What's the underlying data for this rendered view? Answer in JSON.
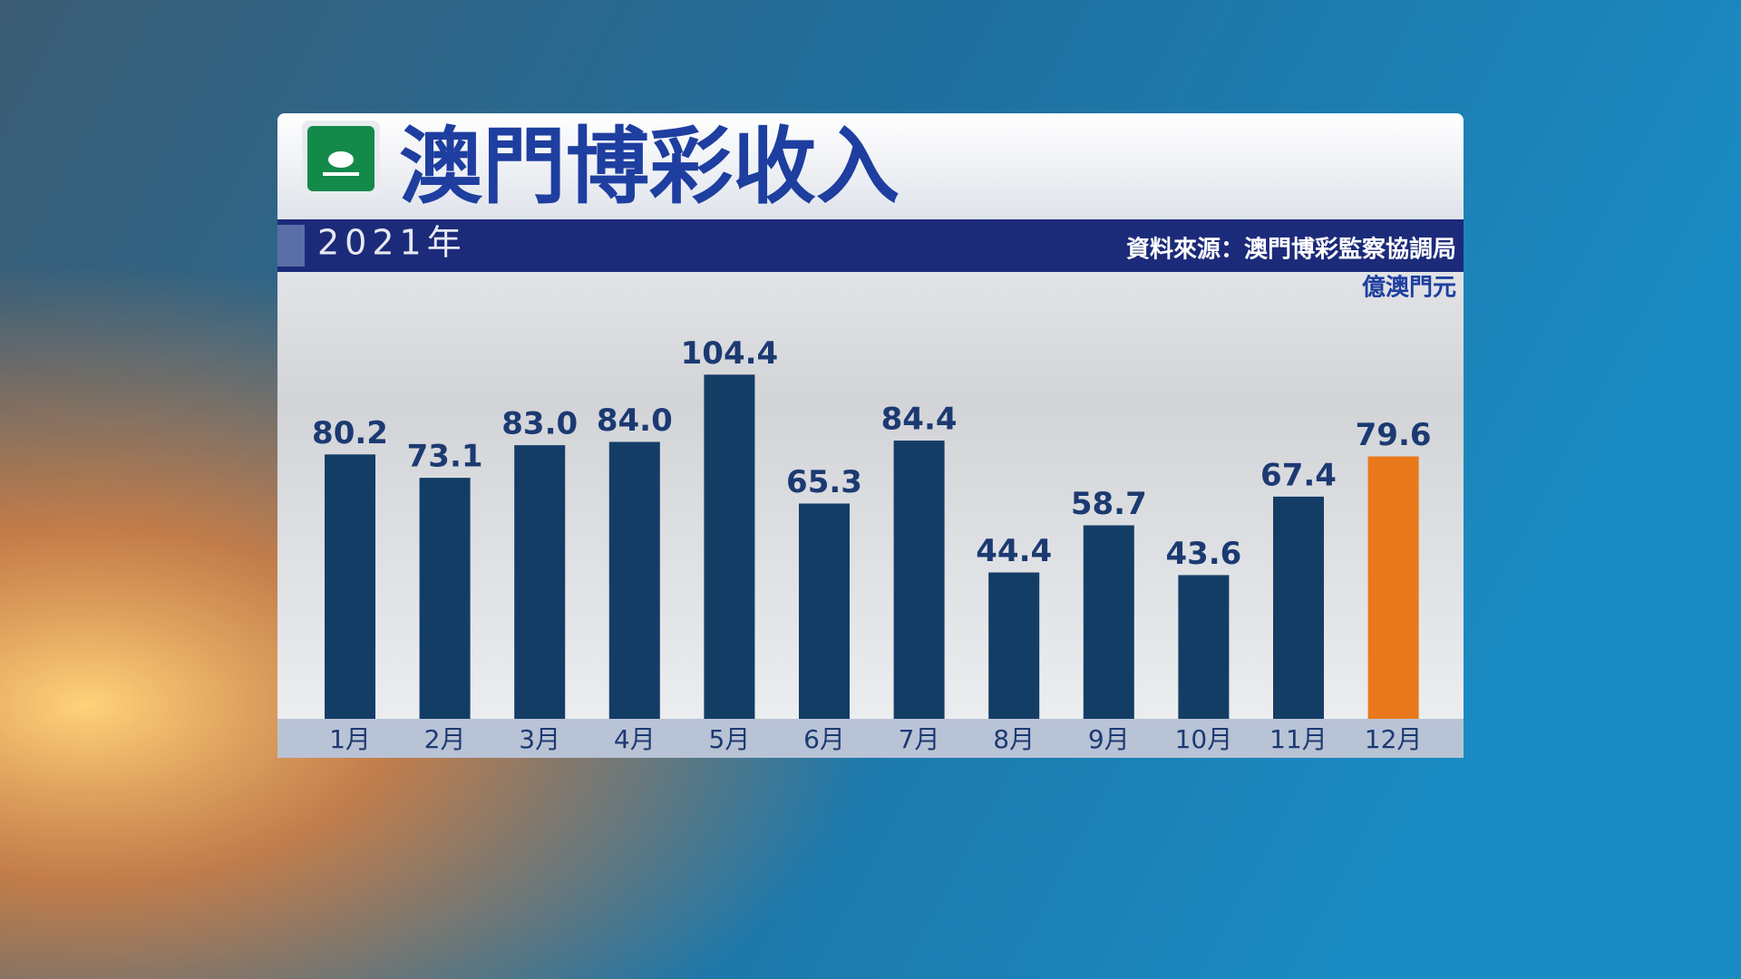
{
  "chart_data": {
    "type": "bar",
    "title": "澳門博彩收入",
    "subtitle": "2021年",
    "source": "資料來源：澳門博彩監察協調局",
    "unit": "億澳門元",
    "categories": [
      "1月",
      "2月",
      "3月",
      "4月",
      "5月",
      "6月",
      "7月",
      "8月",
      "9月",
      "10月",
      "11月",
      "12月"
    ],
    "values": [
      80.2,
      73.1,
      83.0,
      84.0,
      104.4,
      65.3,
      84.4,
      44.4,
      58.7,
      43.6,
      67.4,
      79.6
    ],
    "value_labels": [
      "80.2",
      "73.1",
      "83.0",
      "84.0",
      "104.4",
      "65.3",
      "84.4",
      "44.4",
      "58.7",
      "43.6",
      "67.4",
      "79.6"
    ],
    "colors": [
      "#143d66",
      "#143d66",
      "#143d66",
      "#143d66",
      "#143d66",
      "#143d66",
      "#143d66",
      "#143d66",
      "#143d66",
      "#143d66",
      "#143d66",
      "#e8791a"
    ],
    "ylim": [
      0,
      135
    ]
  }
}
